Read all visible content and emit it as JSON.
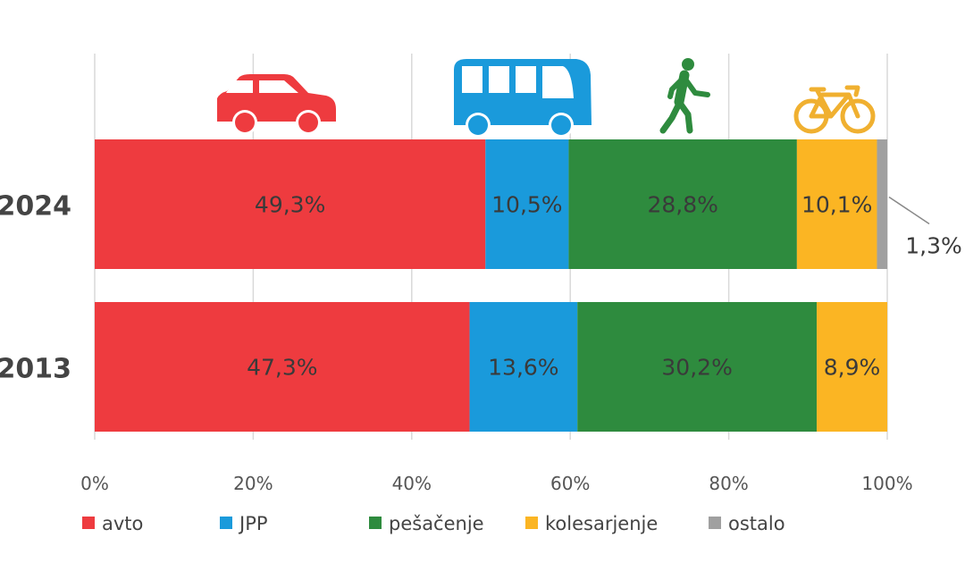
{
  "chart_data": {
    "type": "bar",
    "orientation": "horizontal",
    "stacked": true,
    "categories": [
      "2024",
      "2013"
    ],
    "series": [
      {
        "name": "avto",
        "color": "#EE3B3F",
        "values": [
          49.3,
          47.3
        ],
        "labels": [
          "49,3%",
          "47,3%"
        ]
      },
      {
        "name": "JPP",
        "color": "#1A9ADB",
        "values": [
          10.5,
          13.6
        ],
        "labels": [
          "10,5%",
          "13,6%"
        ]
      },
      {
        "name": "pešačenje",
        "color": "#2E8B3E",
        "values": [
          28.8,
          30.2
        ],
        "labels": [
          "28,8%",
          "30,2%"
        ]
      },
      {
        "name": "kolesarjenje",
        "color": "#FBB523",
        "values": [
          10.1,
          8.9
        ],
        "labels": [
          "10,1%",
          "8,9%"
        ]
      },
      {
        "name": "ostalo",
        "color": "#A0A0A0",
        "values": [
          1.3,
          0
        ],
        "labels": [
          "1,3%",
          ""
        ]
      }
    ],
    "xlim": [
      0,
      100
    ],
    "xticks": [
      "0%",
      "20%",
      "40%",
      "60%",
      "80%",
      "100%"
    ],
    "grid": true,
    "legend_position": "bottom",
    "icons": [
      "car-icon",
      "bus-icon",
      "pedestrian-icon",
      "bicycle-icon"
    ]
  }
}
